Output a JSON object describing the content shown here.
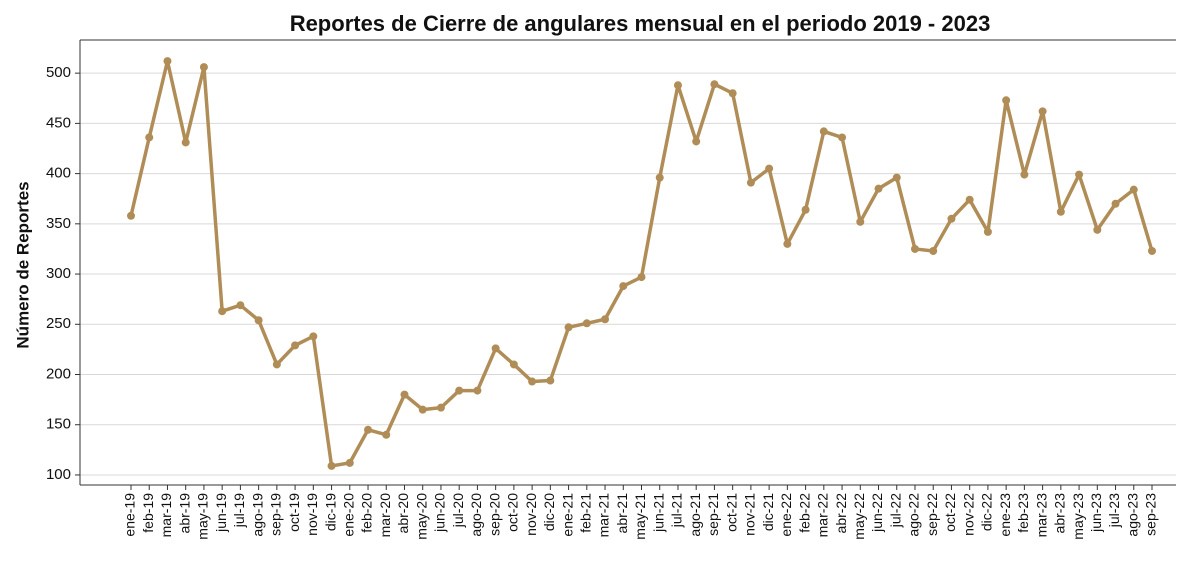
{
  "chart_data": {
    "type": "line",
    "title": "Reportes de Cierre de angulares mensual en el periodo 2019 - 2023",
    "y_label": "Número de Reportes",
    "categories": [
      "ene-19",
      "feb-19",
      "mar-19",
      "abr-19",
      "may-19",
      "jun-19",
      "jul-19",
      "ago-19",
      "sep-19",
      "oct-19",
      "nov-19",
      "dic-19",
      "ene-20",
      "feb-20",
      "mar-20",
      "abr-20",
      "may-20",
      "jun-20",
      "jul-20",
      "ago-20",
      "sep-20",
      "oct-20",
      "nov-20",
      "dic-20",
      "ene-21",
      "feb-21",
      "mar-21",
      "abr-21",
      "may-21",
      "jun-21",
      "jul-21",
      "ago-21",
      "sep-21",
      "oct-21",
      "nov-21",
      "dic-21",
      "ene-22",
      "feb-22",
      "mar-22",
      "abr-22",
      "may-22",
      "jun-22",
      "jul-22",
      "ago-22",
      "sep-22",
      "oct-22",
      "nov-22",
      "dic-22",
      "ene-23",
      "feb-23",
      "mar-23",
      "abr-23",
      "may-23",
      "jun-23",
      "jul-23",
      "ago-23",
      "sep-23"
    ],
    "series": [
      {
        "name": "Reportes",
        "color": "#b08d57",
        "values": [
          358,
          436,
          512,
          431,
          506,
          263,
          269,
          254,
          210,
          229,
          238,
          109,
          112,
          145,
          140,
          180,
          165,
          167,
          184,
          184,
          226,
          210,
          193,
          194,
          247,
          251,
          255,
          288,
          297,
          396,
          488,
          432,
          489,
          480,
          391,
          405,
          330,
          364,
          442,
          436,
          352,
          385,
          396,
          325,
          323,
          355,
          374,
          342,
          473,
          399,
          462,
          362,
          399,
          344,
          370,
          384,
          323
        ]
      }
    ],
    "ylim": [
      90,
      533
    ],
    "yticks": [
      100,
      150,
      200,
      250,
      300,
      350,
      400,
      450,
      500
    ],
    "grid": true
  }
}
